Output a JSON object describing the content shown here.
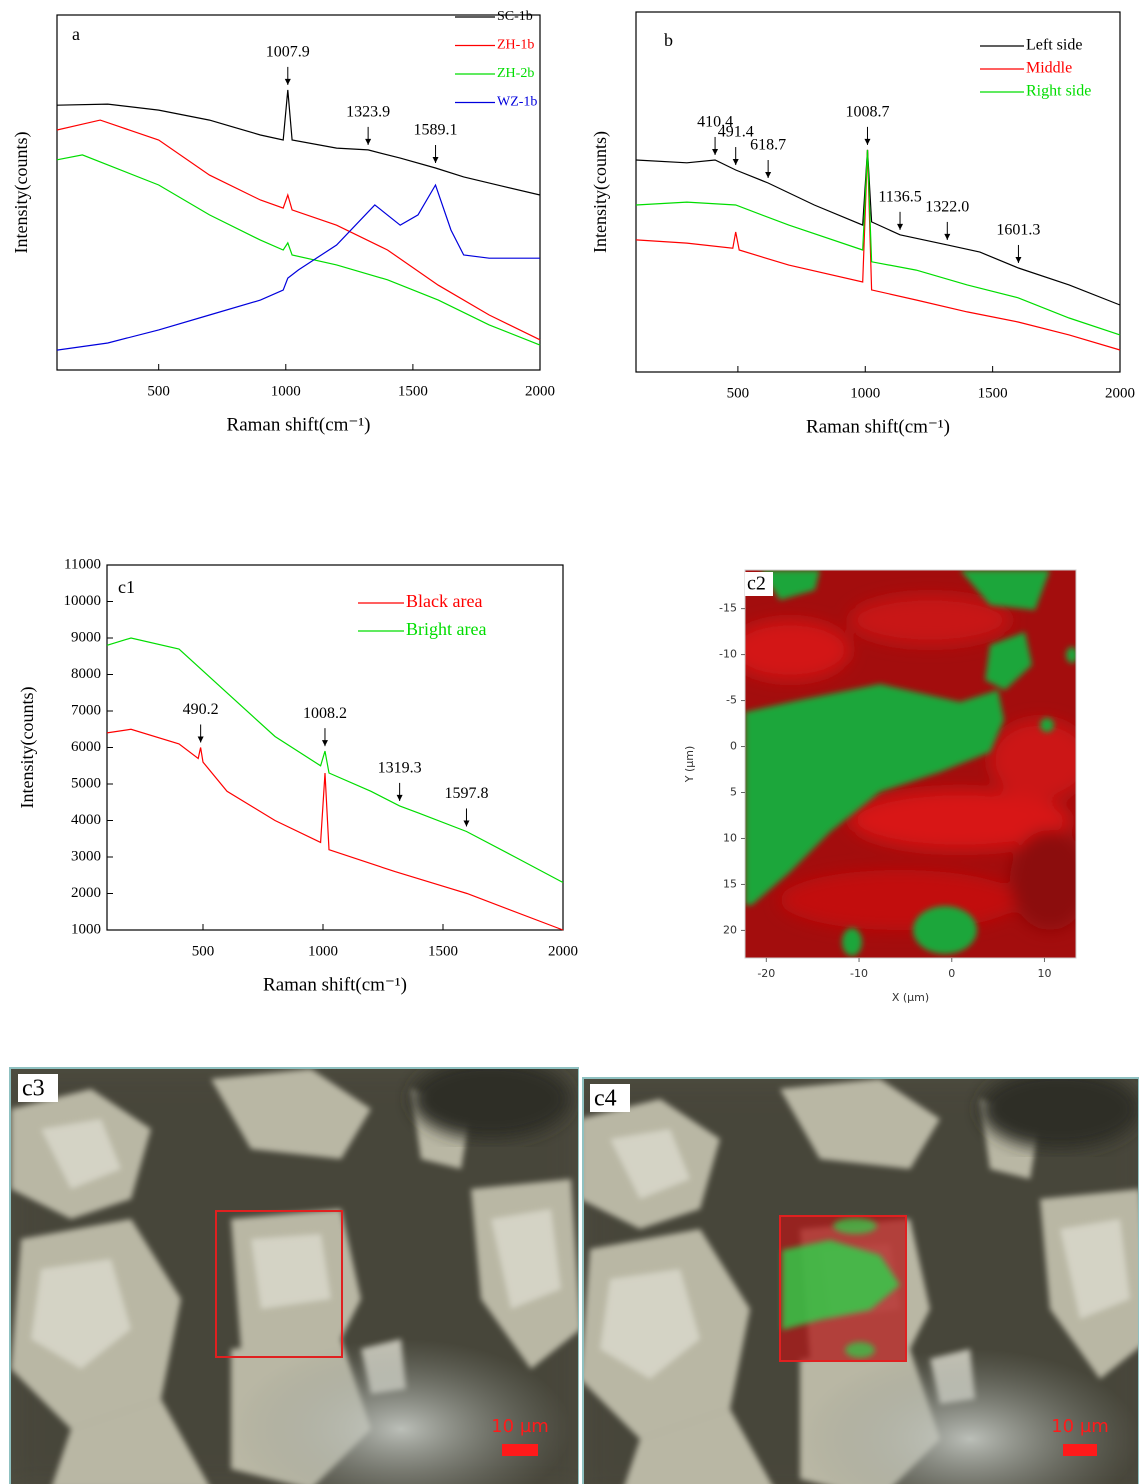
{
  "chart_data": [
    {
      "type": "line",
      "panel_label": "a",
      "xlabel": "Raman shift(cm⁻¹)",
      "ylabel": "Intensity(counts)",
      "xlim": [
        100,
        2000
      ],
      "xticks": [
        500,
        1000,
        1500,
        2000
      ],
      "ylim": [
        0,
        100
      ],
      "series": [
        {
          "name": "SC-1b",
          "color": "#000000",
          "x": [
            100,
            300,
            500,
            700,
            900,
            990,
            1007.9,
            1025,
            1200,
            1323.9,
            1450,
            1589.1,
            1700,
            1850,
            2000
          ],
          "values": [
            74.6,
            74.9,
            73.2,
            70.4,
            66.2,
            64.8,
            78.9,
            64.8,
            62.5,
            62.0,
            59.7,
            56.9,
            54.4,
            51.8,
            49.3
          ],
          "annotations": [
            {
              "x": 1007.9,
              "label": "1007.9"
            },
            {
              "x": 1323.9,
              "label": "1323.9"
            },
            {
              "x": 1589.1,
              "label": "1589.1"
            }
          ]
        },
        {
          "name": "ZH-1b",
          "color": "#ff0000",
          "x": [
            100,
            270,
            500,
            700,
            900,
            990,
            1007.9,
            1025,
            1200,
            1400,
            1600,
            1800,
            2000
          ],
          "values": [
            67.6,
            70.4,
            64.8,
            54.9,
            47.9,
            45.6,
            49.3,
            45.1,
            40.8,
            33.8,
            23.9,
            15.5,
            8.5
          ]
        },
        {
          "name": "ZH-2b",
          "color": "#00dd00",
          "x": [
            100,
            200,
            500,
            700,
            900,
            990,
            1007.9,
            1025,
            1200,
            1400,
            1600,
            1800,
            2000
          ],
          "values": [
            59.2,
            60.6,
            52.1,
            43.7,
            36.6,
            33.8,
            35.8,
            32.4,
            29.6,
            25.4,
            19.7,
            12.7,
            7.0
          ]
        },
        {
          "name": "WZ-1b",
          "color": "#0000dd",
          "x": [
            100,
            300,
            500,
            700,
            900,
            990,
            1007.9,
            1050,
            1200,
            1350,
            1450,
            1520,
            1589.1,
            1650,
            1700,
            1800,
            2000
          ],
          "values": [
            5.6,
            7.6,
            11.3,
            15.5,
            19.7,
            22.5,
            25.9,
            28.2,
            35.2,
            46.5,
            40.8,
            43.7,
            52.1,
            39.4,
            32.4,
            31.5,
            31.5
          ]
        }
      ]
    },
    {
      "type": "line",
      "panel_label": "b",
      "xlabel": "Raman shift(cm⁻¹)",
      "ylabel": "Intensity(counts)",
      "xlim": [
        100,
        2000
      ],
      "xticks": [
        500,
        1000,
        1500,
        2000
      ],
      "ylim": [
        0,
        100
      ],
      "series": [
        {
          "name": "Left side",
          "color": "#000000",
          "x": [
            100,
            300,
            410.4,
            491.4,
            618.7,
            800,
            990,
            1008.7,
            1025,
            1136.5,
            1322.0,
            1450,
            1601.3,
            1800,
            2000
          ],
          "values": [
            58.9,
            58.1,
            58.9,
            56.1,
            52.5,
            46.4,
            40.8,
            61.7,
            41.7,
            38.1,
            35.3,
            33.3,
            28.9,
            24.2,
            18.6
          ],
          "annotations": [
            {
              "x": 410.4,
              "label": "410.4"
            },
            {
              "x": 491.4,
              "label": "491.4"
            },
            {
              "x": 618.7,
              "label": "618.7"
            },
            {
              "x": 1008.7,
              "label": "1008.7"
            },
            {
              "x": 1136.5,
              "label": "1136.5"
            },
            {
              "x": 1322.0,
              "label": "1322.0"
            },
            {
              "x": 1601.3,
              "label": "1601.3"
            }
          ]
        },
        {
          "name": "Middle",
          "color": "#ff0000",
          "x": [
            100,
            300,
            480,
            491.4,
            505,
            700,
            990,
            1008.7,
            1025,
            1200,
            1400,
            1600,
            1800,
            2000
          ],
          "values": [
            36.7,
            35.8,
            34.4,
            38.9,
            33.9,
            29.7,
            25.0,
            61.7,
            22.8,
            20.0,
            16.7,
            13.9,
            10.3,
            6.1
          ]
        },
        {
          "name": "Right side",
          "color": "#00dd00",
          "x": [
            100,
            300,
            491.4,
            700,
            990,
            1008.7,
            1025,
            1200,
            1400,
            1600,
            1800,
            2000
          ],
          "values": [
            46.4,
            47.2,
            46.4,
            40.8,
            33.9,
            61.7,
            30.6,
            28.3,
            24.2,
            20.6,
            15.0,
            10.3
          ]
        }
      ]
    },
    {
      "type": "line",
      "panel_label": "c1",
      "xlabel": "Raman shift(cm⁻¹)",
      "ylabel": "Intensity(counts)",
      "xlim": [
        100,
        2000
      ],
      "xticks": [
        500,
        1000,
        1500,
        2000
      ],
      "ylim": [
        1000,
        11000
      ],
      "yticks": [
        1000,
        2000,
        3000,
        4000,
        5000,
        6000,
        7000,
        8000,
        9000,
        10000,
        11000
      ],
      "series": [
        {
          "name": "Black area",
          "color": "#ff0000",
          "x": [
            100,
            200,
            400,
            480,
            490.2,
            500,
            600,
            800,
            990,
            1008.2,
            1025,
            1300,
            1600,
            2000
          ],
          "values": [
            6400,
            6500,
            6100,
            5700,
            6000,
            5600,
            4800,
            4000,
            3400,
            5300,
            3200,
            2600,
            2000,
            1000
          ],
          "annotations": [
            {
              "x": 490.2,
              "label": "490.2"
            }
          ]
        },
        {
          "name": "Bright area",
          "color": "#00dd00",
          "x": [
            100,
            200,
            400,
            600,
            800,
            990,
            1008.2,
            1025,
            1200,
            1319.3,
            1400,
            1597.8,
            1800,
            2000
          ],
          "values": [
            8800,
            9000,
            8700,
            7500,
            6300,
            5500,
            5900,
            5300,
            4800,
            4400,
            4200,
            3700,
            3000,
            2300
          ],
          "annotations": [
            {
              "x": 1008.2,
              "label": "1008.2"
            },
            {
              "x": 1319.3,
              "label": "1319.3"
            },
            {
              "x": 1597.8,
              "label": "1597.8"
            }
          ]
        }
      ]
    },
    {
      "type": "map",
      "panel_label": "c2",
      "xlabel": "X (µm)",
      "ylabel": "Y (µm)",
      "xlim": [
        -22.3,
        13.4
      ],
      "xticks": [
        -20,
        -10,
        0,
        10
      ],
      "ylim": [
        -19.2,
        23
      ],
      "yticks": [
        -15,
        -10,
        -5,
        0,
        5,
        10,
        15,
        20
      ]
    }
  ],
  "images": [
    {
      "panel_label": "c3",
      "scale_bar": "10 µm"
    },
    {
      "panel_label": "c4",
      "scale_bar": "10 µm"
    }
  ]
}
